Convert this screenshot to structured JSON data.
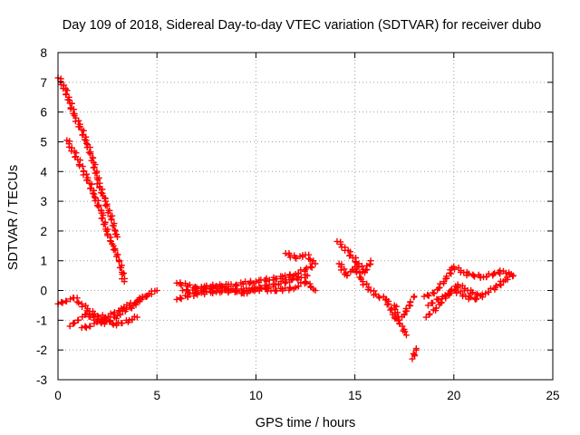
{
  "chart_data": {
    "type": "scatter",
    "title": "Day 109 of 2018, Sidereal Day-to-day VTEC variation (SDTVAR) for receiver dubo",
    "xlabel": "GPS time / hours",
    "ylabel": "SDTVAR / TECUs",
    "xlim": [
      0,
      25
    ],
    "ylim": [
      -3,
      8
    ],
    "x_ticks": [
      "0",
      "5",
      "10",
      "15",
      "20",
      "25"
    ],
    "y_ticks": [
      "-3",
      "-2",
      "-1",
      "0",
      "1",
      "2",
      "3",
      "4",
      "5",
      "6",
      "7",
      "8"
    ],
    "grid": true,
    "marker": "+",
    "color": "#ff0000",
    "segments": [
      {
        "name": "descending-arc-1",
        "x": [
          0.0,
          0.3,
          0.6,
          0.9,
          1.2,
          1.5,
          1.8,
          2.1,
          2.4,
          2.7,
          2.9,
          3.0
        ],
        "y": [
          7.15,
          6.9,
          6.3,
          5.8,
          5.4,
          4.9,
          4.3,
          3.5,
          3.0,
          2.4,
          2.0,
          1.8
        ]
      },
      {
        "name": "descending-arc-2",
        "x": [
          0.45,
          0.7,
          1.0,
          1.3,
          1.6,
          1.9,
          2.2,
          2.5,
          2.8,
          3.1,
          3.35
        ],
        "y": [
          5.05,
          4.8,
          4.4,
          4.0,
          3.6,
          3.1,
          2.6,
          1.9,
          1.5,
          1.0,
          0.3
        ]
      },
      {
        "name": "morning-band-a",
        "x": [
          0.0,
          0.4,
          0.8,
          1.2,
          1.6,
          2.0,
          2.4,
          2.8,
          3.2,
          3.6,
          4.0,
          4.4
        ],
        "y": [
          -0.45,
          -0.35,
          -0.25,
          -0.45,
          -0.7,
          -0.85,
          -0.9,
          -0.8,
          -0.6,
          -0.5,
          -0.35,
          -0.2
        ]
      },
      {
        "name": "morning-band-b",
        "x": [
          0.6,
          1.0,
          1.4,
          1.8,
          2.2,
          2.6,
          3.0,
          3.4,
          3.8,
          4.2,
          4.6,
          5.0
        ],
        "y": [
          -1.2,
          -1.0,
          -0.8,
          -0.9,
          -1.1,
          -1.05,
          -0.85,
          -0.7,
          -0.5,
          -0.3,
          -0.1,
          0.0
        ]
      },
      {
        "name": "morning-band-c",
        "x": [
          1.2,
          1.6,
          2.0,
          2.4,
          2.8,
          3.2,
          3.6,
          4.0
        ],
        "y": [
          -1.25,
          -1.2,
          -1.05,
          -0.95,
          -1.15,
          -1.1,
          -1.0,
          -0.9
        ]
      },
      {
        "name": "daytime-upper",
        "x": [
          6.0,
          7.0,
          8.0,
          9.0,
          10.0,
          11.0,
          12.0,
          12.5,
          13.0
        ],
        "y": [
          0.25,
          0.1,
          0.15,
          0.2,
          0.3,
          0.4,
          0.55,
          0.7,
          0.9
        ]
      },
      {
        "name": "daytime-lower",
        "x": [
          6.0,
          7.0,
          8.0,
          9.0,
          10.0,
          11.0,
          12.0,
          12.5,
          13.0
        ],
        "y": [
          -0.3,
          -0.1,
          -0.05,
          0.0,
          0.05,
          0.0,
          0.1,
          0.3,
          0.0
        ]
      },
      {
        "name": "daytime-mid",
        "x": [
          6.3,
          7.0,
          7.8,
          8.6,
          9.4,
          10.2,
          11.0,
          11.8,
          12.6
        ],
        "y": [
          0.0,
          -0.05,
          0.1,
          0.05,
          -0.1,
          0.1,
          0.2,
          0.35,
          0.5
        ]
      },
      {
        "name": "daytime-spur",
        "x": [
          11.5,
          12.0,
          12.5,
          12.9
        ],
        "y": [
          1.25,
          1.1,
          1.2,
          1.0
        ]
      },
      {
        "name": "evening-upper",
        "x": [
          14.1,
          14.5,
          14.9,
          15.2,
          15.5,
          15.8
        ],
        "y": [
          1.65,
          1.45,
          1.1,
          0.9,
          0.6,
          1.0
        ]
      },
      {
        "name": "evening-lower",
        "x": [
          14.2,
          14.6,
          15.0,
          15.4,
          15.8,
          16.2,
          16.6,
          17.0,
          17.4,
          17.6
        ],
        "y": [
          0.9,
          0.5,
          0.8,
          0.3,
          0.0,
          -0.2,
          -0.3,
          -0.9,
          -1.2,
          -1.5
        ]
      },
      {
        "name": "evening-tail",
        "x": [
          17.0,
          17.2,
          17.5,
          17.8,
          18.0
        ],
        "y": [
          -0.5,
          -1.0,
          -0.8,
          -0.4,
          -0.2
        ]
      },
      {
        "name": "dip-outlier",
        "x": [
          17.9,
          18.0,
          18.1
        ],
        "y": [
          -2.3,
          -2.15,
          -1.95
        ]
      },
      {
        "name": "night-upper",
        "x": [
          18.5,
          19.0,
          19.5,
          20.0,
          20.5,
          21.0,
          21.5,
          22.0,
          22.5,
          23.0
        ],
        "y": [
          -0.2,
          -0.1,
          0.3,
          0.8,
          0.6,
          0.5,
          0.45,
          0.55,
          0.65,
          0.5
        ]
      },
      {
        "name": "night-lower",
        "x": [
          18.6,
          19.1,
          19.6,
          20.1,
          20.6,
          21.1,
          21.6,
          22.1,
          22.6,
          22.9
        ],
        "y": [
          -0.9,
          -0.6,
          -0.2,
          0.0,
          -0.2,
          -0.3,
          -0.1,
          0.1,
          0.35,
          0.55
        ]
      },
      {
        "name": "night-mid",
        "x": [
          18.7,
          19.2,
          19.7,
          20.2,
          20.7,
          21.2
        ],
        "y": [
          -0.5,
          -0.3,
          -0.1,
          0.2,
          0.0,
          -0.15
        ]
      }
    ]
  }
}
